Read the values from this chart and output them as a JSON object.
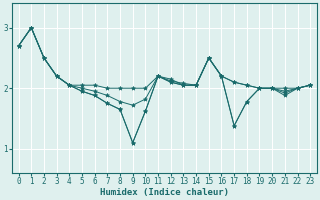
{
  "title": "",
  "xlabel": "Humidex (Indice chaleur)",
  "background_color": "#dff0ee",
  "grid_color": "#ffffff",
  "line_color": "#1a6b6b",
  "xlim": [
    -0.5,
    23.5
  ],
  "ylim": [
    0.6,
    3.4
  ],
  "yticks": [
    1,
    2,
    3
  ],
  "xticks": [
    0,
    1,
    2,
    3,
    4,
    5,
    6,
    7,
    8,
    9,
    10,
    11,
    12,
    13,
    14,
    15,
    16,
    17,
    18,
    19,
    20,
    21,
    22,
    23
  ],
  "series": [
    [
      2.7,
      3.0,
      2.5,
      2.2,
      2.05,
      2.05,
      2.05,
      2.0,
      2.0,
      2.0,
      2.0,
      2.2,
      2.15,
      2.05,
      2.05,
      2.5,
      2.2,
      2.1,
      2.05,
      2.0,
      2.0,
      2.0,
      2.0,
      2.05
    ],
    [
      2.7,
      3.0,
      2.5,
      2.2,
      2.05,
      2.0,
      1.95,
      1.88,
      1.78,
      1.72,
      1.82,
      2.2,
      2.12,
      2.08,
      2.05,
      2.5,
      2.2,
      2.1,
      2.05,
      2.0,
      2.0,
      1.95,
      2.0,
      2.05
    ],
    [
      2.7,
      3.0,
      2.5,
      2.2,
      2.05,
      1.95,
      1.88,
      1.75,
      1.65,
      1.1,
      1.62,
      2.2,
      2.1,
      2.05,
      2.05,
      2.5,
      2.2,
      1.38,
      1.78,
      2.0,
      2.0,
      1.88,
      2.0,
      2.05
    ],
    [
      2.7,
      3.0,
      2.5,
      2.2,
      2.05,
      1.95,
      1.88,
      1.75,
      1.65,
      1.1,
      1.62,
      2.2,
      2.1,
      2.05,
      2.05,
      2.5,
      2.2,
      1.38,
      1.78,
      2.0,
      2.0,
      1.92,
      2.0,
      2.05
    ]
  ]
}
